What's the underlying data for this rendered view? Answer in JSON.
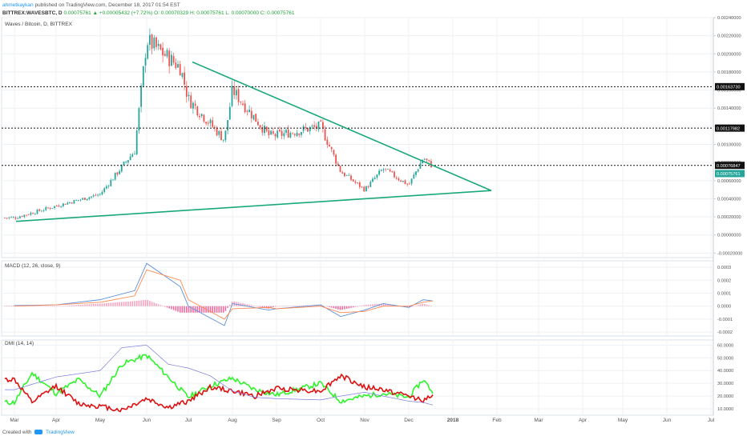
{
  "header": {
    "author": "ahmetkaykan",
    "published_text": "published on TradingView.com, December 18, 2017 01:54 EST",
    "symbol": "BITTREX:WAVESBTC, D",
    "ohlc_text": "0.00075761 ▲ +0.00005432 (+7.72%) O: 0.00070329 H: 0.00075761 L: 0.00070000 C: 0.00075761"
  },
  "price_pane": {
    "label": "Waves / Bitcoin, D, BITTREX"
  },
  "macd_pane": {
    "label": "MACD (12, 26, close, 9)"
  },
  "dmi_pane": {
    "label": "DMI (14, 14)"
  },
  "footer": {
    "created_with": "Created with",
    "brand": "TradingView"
  },
  "colors": {
    "up": "#26a69a",
    "down": "#ef5350",
    "trendline": "#1aa87a",
    "macd_line": "#5b8fdc",
    "signal_line": "#ff8a50",
    "hist_pos": "#f6a5c0",
    "hist_neg": "#f06ba0",
    "di_plus": "#2ef52a",
    "di_minus": "#e01010",
    "adx": "#7a7adc",
    "current_badge": "#26a69a"
  },
  "chart_data": [
    {
      "type": "candlestick",
      "title": "Waves / Bitcoin, D, BITTREX",
      "x_labels": [
        "Mar",
        "Apr",
        "May",
        "Jun",
        "Jul",
        "Aug",
        "Sep",
        "Oct",
        "Nov",
        "Dec",
        "2018",
        "Feb",
        "Mar",
        "Apr",
        "May",
        "Jun",
        "Jul"
      ],
      "y_ticks": [
        "0.00240000",
        "0.00220000",
        "0.00200000",
        "0.00180000",
        "0.00160000",
        "0.00140000",
        "0.00120000",
        "0.00100000",
        "0.00080000",
        "0.00060000",
        "0.00040000",
        "0.00020000",
        "0.00000000",
        "-0.00020000"
      ],
      "ylim": [
        -0.00025,
        0.0024
      ],
      "monthly_closes": [
        {
          "month": "Mar",
          "value": 0.00019
        },
        {
          "month": "Apr",
          "value": 0.00032
        },
        {
          "month": "May",
          "value": 0.00045
        },
        {
          "month": "May-end",
          "value": 0.00093
        },
        {
          "month": "Jun",
          "value": 0.00215
        },
        {
          "month": "Jun-end",
          "value": 0.00185
        },
        {
          "month": "Jul",
          "value": 0.0015
        },
        {
          "month": "Jul-end",
          "value": 0.00105
        },
        {
          "month": "Aug",
          "value": 0.0016
        },
        {
          "month": "Aug-end",
          "value": 0.0011
        },
        {
          "month": "Sep",
          "value": 0.0011
        },
        {
          "month": "Oct",
          "value": 0.0012
        },
        {
          "month": "Oct-end",
          "value": 0.0007
        },
        {
          "month": "Nov",
          "value": 0.0005
        },
        {
          "month": "Nov-mid",
          "value": 0.00073
        },
        {
          "month": "Dec",
          "value": 0.00055
        },
        {
          "month": "Dec-mid",
          "value": 0.00085
        },
        {
          "month": "Dec-18",
          "value": 0.00075761
        }
      ],
      "horizontal_levels": [
        {
          "value": 0.0016373,
          "label": "0.00163730"
        },
        {
          "value": 0.0011798,
          "label": "0.00117982"
        },
        {
          "value": 0.00076847,
          "label": "0.00076847"
        }
      ],
      "current_price_label": "0.00075761",
      "trendlines": [
        {
          "from": [
            "Mar",
            0.00015
          ],
          "to": [
            "Feb",
            0.00049
          ]
        },
        {
          "from": [
            "Jul",
            0.00191
          ],
          "to": [
            "Feb",
            0.00049
          ]
        }
      ]
    },
    {
      "type": "line",
      "title": "MACD (12, 26, close, 9)",
      "y_ticks": [
        "0.0003",
        "0.0002",
        "0.0001",
        "0.0000",
        "-0.0001",
        "-0.0002"
      ],
      "ylim": [
        -0.00023,
        0.00035
      ],
      "series": [
        {
          "name": "MACD",
          "points": [
            [
              "Mar",
              5e-06
            ],
            [
              "Apr",
              1e-05
            ],
            [
              "May",
              5e-05
            ],
            [
              "May-end",
              0.00012
            ],
            [
              "Jun",
              0.00033
            ],
            [
              "Jun-end",
              0.00015
            ],
            [
              "Jul",
              0.0
            ],
            [
              "Jul-end",
              -0.00015
            ],
            [
              "Aug",
              2e-05
            ],
            [
              "Aug-end",
              -3e-05
            ],
            [
              "Sep",
              -2e-05
            ],
            [
              "Oct",
              1e-05
            ],
            [
              "Oct-end",
              -8e-05
            ],
            [
              "Nov",
              -3e-05
            ],
            [
              "Nov-mid",
              2e-05
            ],
            [
              "Dec",
              -1e-05
            ],
            [
              "Dec-mid",
              5e-05
            ],
            [
              "Dec-18",
              4e-05
            ]
          ]
        },
        {
          "name": "Signal",
          "points": [
            [
              "Mar",
              0.0
            ],
            [
              "Apr",
              1e-05
            ],
            [
              "May",
              3e-05
            ],
            [
              "May-end",
              8e-05
            ],
            [
              "Jun",
              0.00028
            ],
            [
              "Jun-end",
              0.0002
            ],
            [
              "Jul",
              5e-05
            ],
            [
              "Jul-end",
              -0.0001
            ],
            [
              "Aug",
              -2e-05
            ],
            [
              "Aug-end",
              -1e-05
            ],
            [
              "Sep",
              -2e-05
            ],
            [
              "Oct",
              0.0
            ],
            [
              "Oct-end",
              -5e-05
            ],
            [
              "Nov",
              -4e-05
            ],
            [
              "Nov-mid",
              0.0
            ],
            [
              "Dec",
              0.0
            ],
            [
              "Dec-mid",
              3e-05
            ],
            [
              "Dec-18",
              4e-05
            ]
          ]
        }
      ]
    },
    {
      "type": "line",
      "title": "DMI (14, 14)",
      "y_ticks": [
        "60.0000",
        "50.0000",
        "40.0000",
        "30.0000",
        "20.0000",
        "10.0000"
      ],
      "ylim": [
        5,
        64
      ],
      "series": [
        {
          "name": "+DI",
          "points": [
            [
              "Mar",
              15
            ],
            [
              "Mar-mid",
              38
            ],
            [
              "Apr",
              22
            ],
            [
              "Apr-mid",
              33
            ],
            [
              "May",
              20
            ],
            [
              "May-mid",
              45
            ],
            [
              "Jun",
              52
            ],
            [
              "Jun-mid",
              35
            ],
            [
              "Jul",
              19
            ],
            [
              "Jul-mid",
              28
            ],
            [
              "Aug",
              34
            ],
            [
              "Aug-mid",
              25
            ],
            [
              "Sep",
              21
            ],
            [
              "Oct",
              30
            ],
            [
              "Oct-end",
              16
            ],
            [
              "Nov",
              20
            ],
            [
              "Nov-mid",
              22
            ],
            [
              "Dec",
              19
            ],
            [
              "Dec-mid",
              33
            ],
            [
              "Dec-18",
              23
            ]
          ]
        },
        {
          "name": "-DI",
          "points": [
            [
              "Mar",
              33
            ],
            [
              "Mar-mid",
              15
            ],
            [
              "Apr",
              28
            ],
            [
              "Apr-mid",
              14
            ],
            [
              "May",
              12
            ],
            [
              "May-mid",
              9
            ],
            [
              "Jun",
              18
            ],
            [
              "Jun-mid",
              11
            ],
            [
              "Jul",
              16
            ],
            [
              "Jul-mid",
              27
            ],
            [
              "Aug",
              24
            ],
            [
              "Aug-mid",
              20
            ],
            [
              "Sep",
              26
            ],
            [
              "Oct",
              24
            ],
            [
              "Oct-end",
              36
            ],
            [
              "Nov",
              27
            ],
            [
              "Nov-mid",
              25
            ],
            [
              "Dec",
              20
            ],
            [
              "Dec-mid",
              17
            ],
            [
              "Dec-18",
              20
            ]
          ]
        },
        {
          "name": "ADX",
          "points": [
            [
              "Mar",
              25
            ],
            [
              "Apr",
              35
            ],
            [
              "May",
              40
            ],
            [
              "May-mid",
              58
            ],
            [
              "Jun",
              60
            ],
            [
              "Jun-mid",
              45
            ],
            [
              "Jul",
              42
            ],
            [
              "Jul-mid",
              36
            ],
            [
              "Aug",
              24
            ],
            [
              "Aug-mid",
              19
            ],
            [
              "Sep",
              18
            ],
            [
              "Oct",
              17
            ],
            [
              "Oct-end",
              20
            ],
            [
              "Nov",
              23
            ],
            [
              "Nov-mid",
              20
            ],
            [
              "Dec",
              16
            ],
            [
              "Dec-mid",
              15
            ],
            [
              "Dec-18",
              13
            ]
          ]
        }
      ]
    }
  ]
}
